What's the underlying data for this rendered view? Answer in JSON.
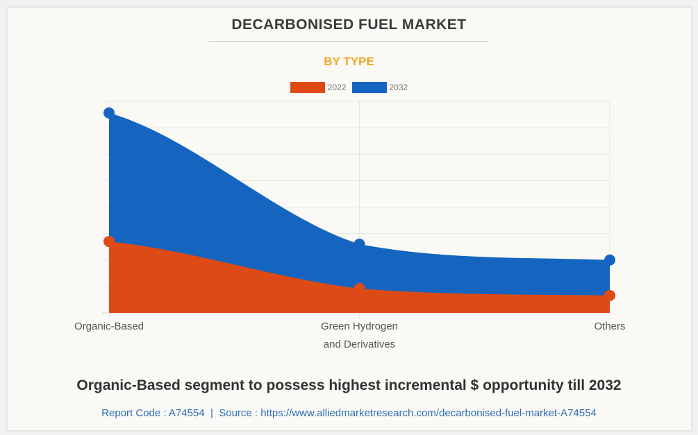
{
  "header": {
    "title": "DECARBONISED FUEL MARKET",
    "subtitle": "BY TYPE"
  },
  "colors": {
    "series_2022": "#de4a16",
    "series_2032": "#1565c0",
    "subtitle": "#f5a623",
    "link": "#2f6db5"
  },
  "chart_data": {
    "type": "area",
    "title": "DECARBONISED FUEL MARKET",
    "subtitle": "BY TYPE",
    "categories": [
      "Organic-Based",
      "Green Hydrogen and Derivatives",
      "Others"
    ],
    "category_label_lines": [
      [
        "Organic-Based"
      ],
      [
        "Green Hydrogen",
        "and Derivatives"
      ],
      [
        "Others"
      ]
    ],
    "series": [
      {
        "name": "2022",
        "color": "#de4a16",
        "values": [
          2.7,
          0.92,
          0.66
        ]
      },
      {
        "name": "2032",
        "color": "#1565c0",
        "values": [
          7.56,
          2.6,
          2.0
        ]
      }
    ],
    "xlabel": "",
    "ylabel": "",
    "ylim": [
      0,
      8
    ],
    "y_gridlines": 8,
    "y_tick_labels_shown": false,
    "grid": true,
    "legend": "top-center",
    "smooth": true
  },
  "footer": {
    "caption": "Organic-Based segment to possess highest incremental $ opportunity till 2032",
    "report_code_label": "Report Code : A74554",
    "separator": "|",
    "source_label": "Source : https://www.alliedmarketresearch.com/decarbonised-fuel-market-A74554"
  }
}
